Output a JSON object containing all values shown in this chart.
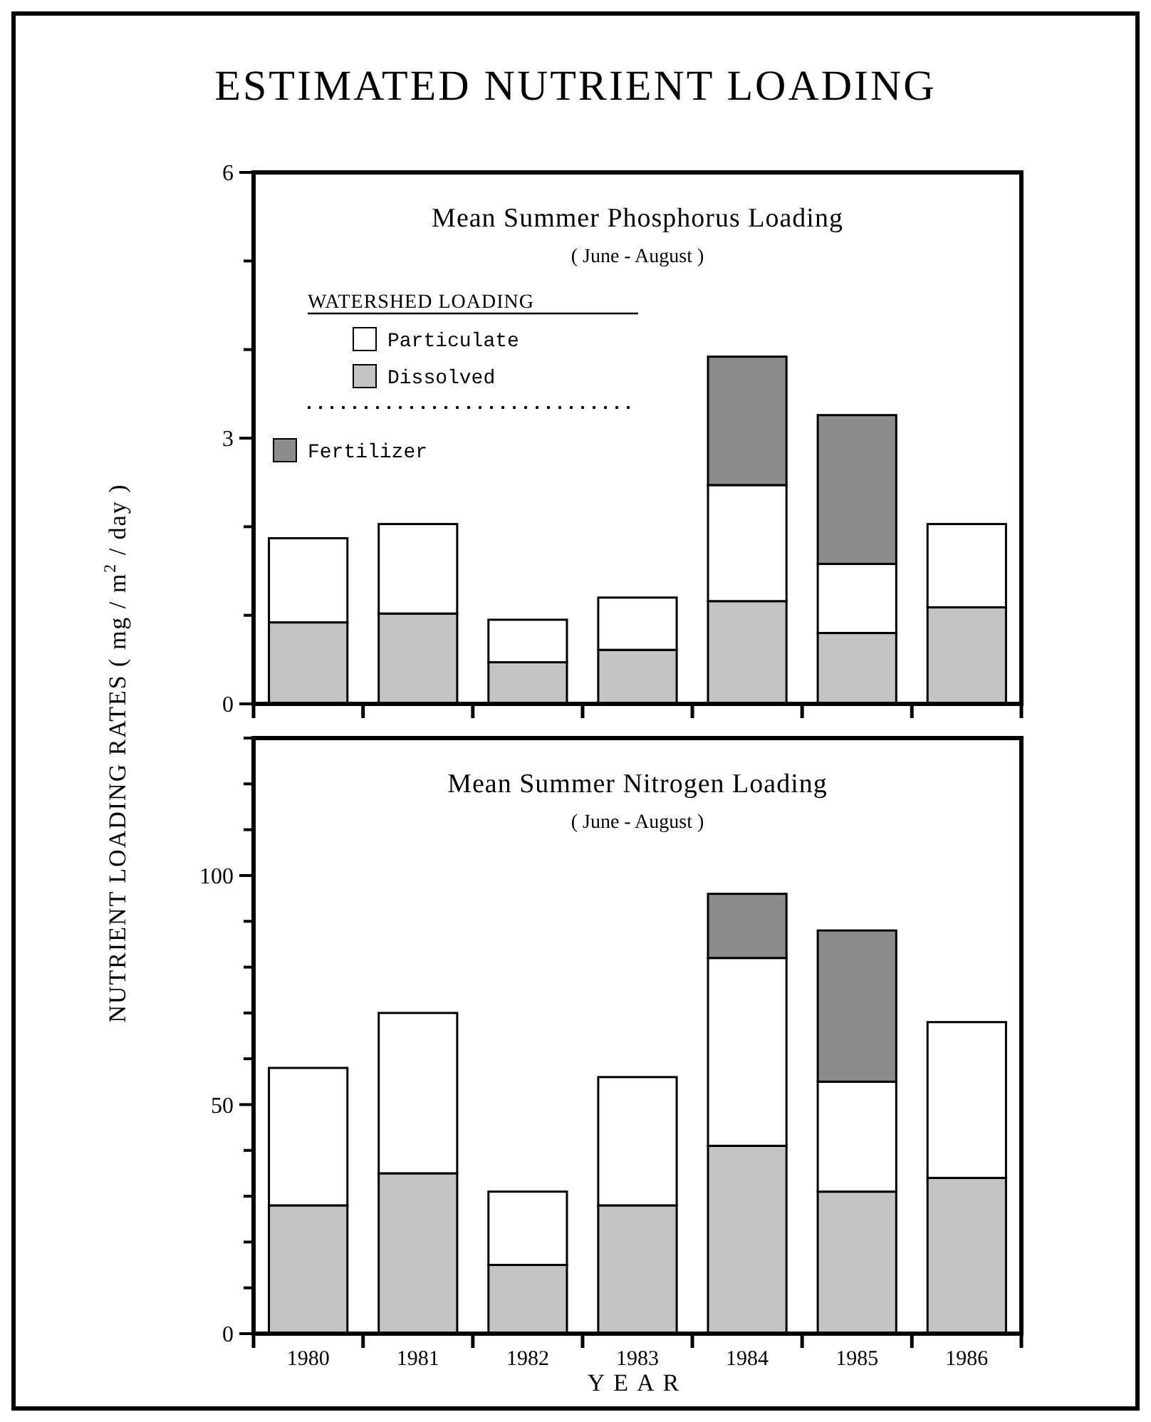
{
  "chart_data": [
    {
      "type": "bar",
      "title": "Mean Summer Phosphorus Loading",
      "subtitle": "( June - August )",
      "ylabel": "NUTRIENT LOADING RATES   ( mg / m$^{2}$ / day )",
      "annotations": [
        "ESTIMATED NUTRIENT LOADING"
      ],
      "legend_title": "WATERSHED LOADING",
      "legend": "top left",
      "stacked": true,
      "tick_labels": "y",
      "categories": [
        "1980",
        "1981",
        "1982",
        "1983",
        "1984",
        "1985",
        "1986"
      ],
      "series": [
        {
          "name": "Dissolved",
          "color": "#c4c4c4",
          "values": [
            0.92,
            1.02,
            0.47,
            0.61,
            1.16,
            0.8,
            1.09
          ]
        },
        {
          "name": "Particulate",
          "color": "#ffffff",
          "values": [
            0.95,
            1.01,
            0.48,
            0.59,
            1.31,
            0.78,
            0.94
          ]
        },
        {
          "name": "Fertilizer",
          "color": "#8c8c8c",
          "values": [
            null,
            null,
            null,
            null,
            1.45,
            1.68,
            null
          ]
        }
      ],
      "ylim": [
        0,
        6
      ],
      "yticks": [
        0,
        {
          "value": 1,
          "label": null
        },
        {
          "value": 2,
          "label": null
        },
        3,
        {
          "value": 4,
          "label": null
        },
        {
          "value": 5,
          "label": null
        },
        6
      ]
    },
    {
      "type": "bar",
      "title": "Mean Summer Nitrogen Loading",
      "subtitle": "( June - August )",
      "xlabel": "YEAR",
      "stacked": true,
      "categories": [
        "1980",
        "1981",
        "1982",
        "1983",
        "1984",
        "1985",
        "1986"
      ],
      "series": [
        {
          "color": "#c4c4c4",
          "values": [
            28,
            35,
            15,
            28,
            41,
            31,
            34
          ]
        },
        {
          "color": "#ffffff",
          "values": [
            30,
            35,
            16,
            28,
            41,
            24,
            34
          ]
        },
        {
          "color": "#8c8c8c",
          "values": [
            null,
            null,
            null,
            null,
            14,
            33,
            null
          ]
        }
      ],
      "ylim": [
        0,
        130
      ],
      "yticks": [
        0,
        {
          "value": 10,
          "label": null
        },
        {
          "value": 20,
          "label": null
        },
        {
          "value": 30,
          "label": null
        },
        {
          "value": 40,
          "label": null
        },
        50,
        {
          "value": 60,
          "label": null
        },
        {
          "value": 70,
          "label": null
        },
        {
          "value": 80,
          "label": null
        },
        {
          "value": 90,
          "label": null
        },
        100,
        {
          "value": 110,
          "label": null
        },
        {
          "value": 120,
          "label": null
        },
        {
          "value": 130,
          "label": null
        }
      ]
    }
  ]
}
